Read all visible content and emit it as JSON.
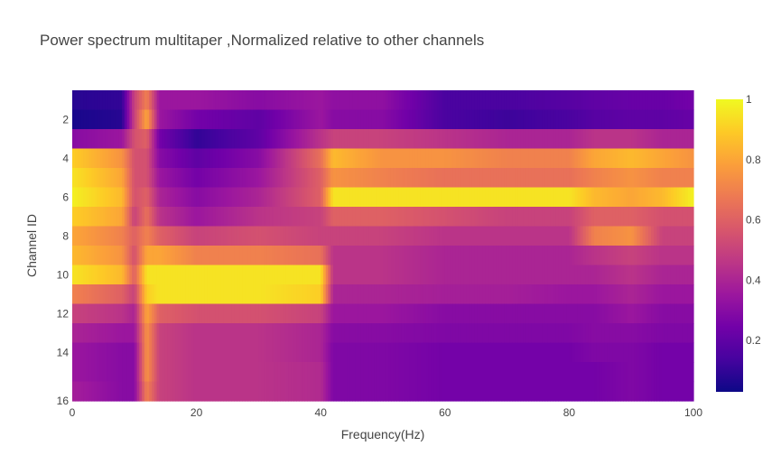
{
  "chart_data": {
    "type": "heatmap",
    "title": "Power spectrum multitaper ,Normalized relative to other channels",
    "xlabel": "Frequency(Hz)",
    "ylabel": "Channel ID",
    "xlim": [
      0,
      100
    ],
    "ylim": [
      1,
      16
    ],
    "y_reversed": true,
    "x_ticks": [
      "0",
      "20",
      "40",
      "60",
      "80",
      "100"
    ],
    "y_ticks": [
      "2",
      "4",
      "6",
      "8",
      "10",
      "12",
      "14",
      "16"
    ],
    "colorbar": {
      "range": [
        0.03,
        1
      ],
      "ticks": [
        "0.2",
        "0.4",
        "0.6",
        "0.8",
        "1"
      ],
      "colorscale": "Plasma",
      "colors": [
        "#0d0887",
        "#46039f",
        "#7201a8",
        "#9c179e",
        "#bd3786",
        "#d8576b",
        "#ed7953",
        "#fb9f3a",
        "#fdca26",
        "#f0f921"
      ]
    },
    "channels": [
      1,
      2,
      3,
      4,
      5,
      6,
      7,
      8,
      9,
      10,
      11,
      12,
      13,
      14,
      15,
      16
    ],
    "band_frequencies_hz": [
      0,
      8,
      10,
      12,
      14,
      20,
      30,
      40,
      42,
      50,
      60,
      70,
      80,
      84,
      90,
      95,
      100
    ],
    "band_values": [
      [
        0.08,
        0.1,
        0.5,
        0.7,
        0.35,
        0.35,
        0.3,
        0.35,
        0.32,
        0.32,
        0.15,
        0.15,
        0.18,
        0.2,
        0.22,
        0.22,
        0.25
      ],
      [
        0.05,
        0.08,
        0.5,
        0.8,
        0.35,
        0.25,
        0.2,
        0.35,
        0.3,
        0.3,
        0.15,
        0.12,
        0.15,
        0.18,
        0.2,
        0.2,
        0.22
      ],
      [
        0.3,
        0.35,
        0.55,
        0.6,
        0.25,
        0.1,
        0.2,
        0.45,
        0.5,
        0.5,
        0.45,
        0.4,
        0.4,
        0.45,
        0.45,
        0.4,
        0.4
      ],
      [
        0.9,
        0.75,
        0.55,
        0.55,
        0.3,
        0.2,
        0.3,
        0.65,
        0.85,
        0.75,
        0.75,
        0.7,
        0.7,
        0.8,
        0.85,
        0.8,
        0.75
      ],
      [
        0.95,
        0.8,
        0.55,
        0.55,
        0.35,
        0.25,
        0.35,
        0.6,
        0.75,
        0.7,
        0.65,
        0.65,
        0.65,
        0.7,
        0.75,
        0.7,
        0.7
      ],
      [
        0.98,
        0.85,
        0.55,
        0.6,
        0.4,
        0.3,
        0.4,
        0.6,
        0.95,
        0.95,
        0.95,
        0.95,
        0.95,
        0.85,
        0.8,
        0.85,
        0.98
      ],
      [
        0.9,
        0.8,
        0.5,
        0.65,
        0.45,
        0.35,
        0.45,
        0.5,
        0.6,
        0.6,
        0.55,
        0.5,
        0.5,
        0.6,
        0.6,
        0.55,
        0.55
      ],
      [
        0.8,
        0.7,
        0.6,
        0.7,
        0.6,
        0.5,
        0.55,
        0.5,
        0.5,
        0.5,
        0.45,
        0.45,
        0.45,
        0.7,
        0.75,
        0.5,
        0.5
      ],
      [
        0.85,
        0.75,
        0.55,
        0.8,
        0.8,
        0.7,
        0.7,
        0.65,
        0.45,
        0.45,
        0.4,
        0.4,
        0.4,
        0.45,
        0.5,
        0.45,
        0.45
      ],
      [
        0.95,
        0.85,
        0.6,
        0.95,
        0.95,
        0.95,
        0.95,
        0.95,
        0.45,
        0.45,
        0.4,
        0.4,
        0.4,
        0.4,
        0.45,
        0.4,
        0.4
      ],
      [
        0.7,
        0.6,
        0.5,
        0.9,
        0.95,
        0.95,
        0.95,
        0.9,
        0.4,
        0.4,
        0.38,
        0.38,
        0.35,
        0.35,
        0.4,
        0.35,
        0.35
      ],
      [
        0.5,
        0.45,
        0.4,
        0.8,
        0.6,
        0.55,
        0.55,
        0.5,
        0.35,
        0.35,
        0.3,
        0.3,
        0.3,
        0.3,
        0.35,
        0.3,
        0.3
      ],
      [
        0.4,
        0.35,
        0.35,
        0.75,
        0.5,
        0.45,
        0.45,
        0.4,
        0.3,
        0.3,
        0.28,
        0.28,
        0.28,
        0.3,
        0.3,
        0.28,
        0.28
      ],
      [
        0.35,
        0.3,
        0.3,
        0.75,
        0.5,
        0.45,
        0.45,
        0.4,
        0.28,
        0.28,
        0.25,
        0.25,
        0.25,
        0.28,
        0.28,
        0.25,
        0.25
      ],
      [
        0.35,
        0.3,
        0.3,
        0.75,
        0.5,
        0.45,
        0.45,
        0.42,
        0.28,
        0.28,
        0.25,
        0.25,
        0.25,
        0.25,
        0.28,
        0.25,
        0.25
      ],
      [
        0.38,
        0.3,
        0.3,
        0.7,
        0.5,
        0.45,
        0.45,
        0.42,
        0.28,
        0.28,
        0.25,
        0.25,
        0.25,
        0.25,
        0.28,
        0.25,
        0.25
      ]
    ]
  }
}
